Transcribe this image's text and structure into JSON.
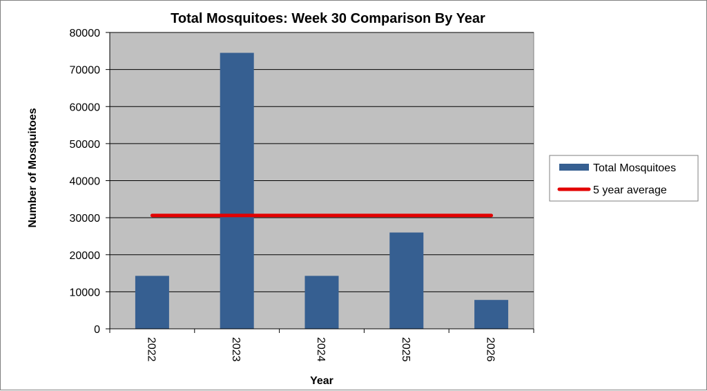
{
  "chart_data": {
    "type": "bar",
    "title": "Total Mosquitoes: Week 30 Comparison By Year",
    "xlabel": "Year",
    "ylabel": "Number of Mosquitoes",
    "categories": [
      "2022",
      "2023",
      "2024",
      "2025",
      "2026"
    ],
    "ylim": [
      0,
      80000
    ],
    "yticks": [
      0,
      10000,
      20000,
      30000,
      40000,
      50000,
      60000,
      70000,
      80000
    ],
    "grid": true,
    "series": [
      {
        "name": "Total Mosquitoes",
        "kind": "bar",
        "color": "#365f91",
        "values": [
          14300,
          74500,
          14300,
          26000,
          7800
        ]
      },
      {
        "name": "5 year average",
        "kind": "line",
        "color": "#e30000",
        "values": [
          30600,
          30600,
          30600,
          30600,
          30600
        ]
      }
    ],
    "legend": "right",
    "plot_background": "#c0c0c0"
  }
}
